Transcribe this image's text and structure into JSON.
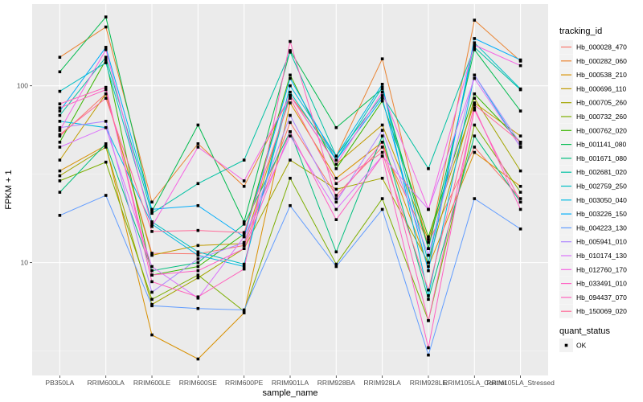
{
  "chart_data": {
    "type": "line",
    "title": "",
    "xlabel": "sample_name",
    "ylabel": "FPKM + 1",
    "yscale": "log10",
    "ylim": [
      2.3,
      290
    ],
    "yticks": [
      {
        "value": 10,
        "label": "10"
      },
      {
        "value": 100,
        "label": "100"
      }
    ],
    "grid": true,
    "legend_position": "right",
    "categories": [
      "PB350LA",
      "RRIM600LA",
      "RRIM600LE",
      "RRIM600SE",
      "RRIM600PE",
      "RRIM901LA",
      "RRIM928BA",
      "RRIM928LA",
      "RRIM928LE",
      "RRIM105LA_Control",
      "RRIM105LA_Stressed"
    ],
    "color_legend": {
      "title": "tracking_id"
    },
    "shape_legend": {
      "title": "quant_status",
      "items": [
        {
          "label": "OK",
          "shape": "square"
        }
      ]
    },
    "series": [
      {
        "name": "Hb_000028_470",
        "color": "#F8766D",
        "values": [
          52,
          90,
          11.3,
          11.2,
          12.5,
          62,
          24,
          45,
          13,
          45,
          23
        ]
      },
      {
        "name": "Hb_000282_060",
        "color": "#EA8331",
        "values": [
          145,
          215,
          22,
          47,
          27,
          88,
          40,
          142,
          12,
          235,
          138
        ]
      },
      {
        "name": "Hb_000538_210",
        "color": "#D89000",
        "values": [
          33,
          46,
          3.9,
          2.85,
          5.2,
          80,
          30,
          48,
          9.5,
          42,
          27
        ]
      },
      {
        "name": "Hb_000696_110",
        "color": "#C09B00",
        "values": [
          38,
          90,
          11,
          12.5,
          12.8,
          88,
          36,
          60,
          13.5,
          80,
          52
        ]
      },
      {
        "name": "Hb_000705_260",
        "color": "#A3A500",
        "values": [
          31,
          45,
          5.8,
          8.2,
          12,
          38,
          26,
          30,
          10,
          85,
          33
        ]
      },
      {
        "name": "Hb_000732_260",
        "color": "#7CAE00",
        "values": [
          29,
          37,
          6.2,
          8.5,
          5.3,
          30,
          9.8,
          23,
          4.7,
          60,
          25
        ]
      },
      {
        "name": "Hb_000762_020",
        "color": "#39B600",
        "values": [
          48,
          140,
          8.5,
          9.5,
          14.5,
          115,
          34,
          82,
          14,
          90,
          48
        ]
      },
      {
        "name": "Hb_001141_080",
        "color": "#00BB4E",
        "values": [
          120,
          245,
          19.5,
          60,
          17,
          158,
          58,
          96,
          12,
          160,
          72
        ]
      },
      {
        "name": "Hb_001671_080",
        "color": "#00BF7D",
        "values": [
          25,
          47,
          9,
          10,
          16.5,
          55,
          11.5,
          52,
          6.2,
          52,
          22
        ]
      },
      {
        "name": "Hb_002681_020",
        "color": "#00C1A3",
        "values": [
          68,
          145,
          19,
          28,
          38,
          155,
          40,
          88,
          34,
          165,
          95
        ]
      },
      {
        "name": "Hb_002759_250",
        "color": "#00BFC4",
        "values": [
          93,
          135,
          17,
          11.5,
          9.8,
          92,
          38,
          98,
          10,
          175,
          96
        ]
      },
      {
        "name": "Hb_003050_040",
        "color": "#00B9E3",
        "values": [
          63,
          58,
          16.5,
          11,
          9.5,
          100,
          40,
          102,
          6.5,
          115,
          45
        ]
      },
      {
        "name": "Hb_003226_150",
        "color": "#00ADFA",
        "values": [
          72,
          165,
          20,
          21,
          14,
          110,
          38,
          85,
          9,
          185,
          140
        ]
      },
      {
        "name": "Hb_004223_130",
        "color": "#619CFF",
        "values": [
          18.5,
          24,
          5.7,
          5.5,
          5.4,
          21,
          9.5,
          20,
          3.0,
          23,
          15.5
        ]
      },
      {
        "name": "Hb_005941_010",
        "color": "#AE87FF",
        "values": [
          58,
          63,
          6.8,
          10.5,
          13,
          68,
          22,
          56,
          11,
          115,
          47
        ]
      },
      {
        "name": "Hb_010174_130",
        "color": "#DB72FB",
        "values": [
          45,
          58,
          9.5,
          6.3,
          14,
          52,
          20,
          40,
          20,
          110,
          45
        ]
      },
      {
        "name": "Hb_012760_170",
        "color": "#F564E3",
        "values": [
          56,
          160,
          16,
          45,
          29,
          88,
          36,
          92,
          20,
          170,
          130
        ]
      },
      {
        "name": "Hb_033491_010",
        "color": "#FF61C3",
        "values": [
          75,
          95,
          8.5,
          9,
          12,
          55,
          17.5,
          40,
          3.3,
          75,
          20
        ]
      },
      {
        "name": "Hb_094437_070",
        "color": "#FF62BC",
        "values": [
          79,
          98,
          7.8,
          6.4,
          9.2,
          178,
          23,
          48,
          4.7,
          73,
          22
        ]
      },
      {
        "name": "Hb_150069_020",
        "color": "#FF6A98",
        "values": [
          53,
          85,
          15,
          15.2,
          14.8,
          85,
          28,
          42,
          7,
          78,
          48
        ]
      }
    ]
  }
}
